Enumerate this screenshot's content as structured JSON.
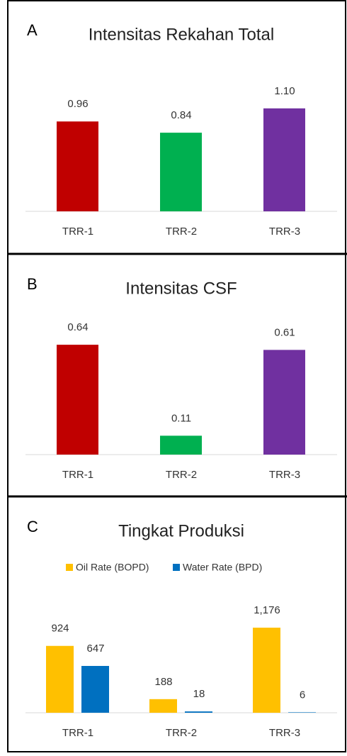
{
  "chart_data": [
    {
      "type": "bar",
      "label": "A",
      "title": "Intensitas Rekahan Total",
      "categories": [
        "TRR-1",
        "TRR-2",
        "TRR-3"
      ],
      "values": [
        0.96,
        0.84,
        1.1
      ],
      "value_labels": [
        "0.96",
        "0.84",
        "1.10"
      ],
      "colors": [
        "#c00000",
        "#00b050",
        "#7030a0"
      ]
    },
    {
      "type": "bar",
      "label": "B",
      "title": "Intensitas CSF",
      "categories": [
        "TRR-1",
        "TRR-2",
        "TRR-3"
      ],
      "values": [
        0.64,
        0.11,
        0.61
      ],
      "colors": [
        "#c00000",
        "#00b050",
        "#7030a0"
      ]
    },
    {
      "type": "grouped_bar",
      "label": "C",
      "title": "Tingkat Produksi",
      "categories": [
        "TRR-1",
        "TRR-2",
        "TRR-3"
      ],
      "series": [
        {
          "name": "Oil Rate (BOPD)",
          "color": "#ffc000",
          "values": [
            924,
            188,
            1176
          ],
          "value_labels": [
            "924",
            "188",
            "1,176"
          ]
        },
        {
          "name": "Water Rate (BPD)",
          "color": "#0070c0",
          "values": [
            647,
            18,
            6
          ]
        }
      ]
    }
  ]
}
